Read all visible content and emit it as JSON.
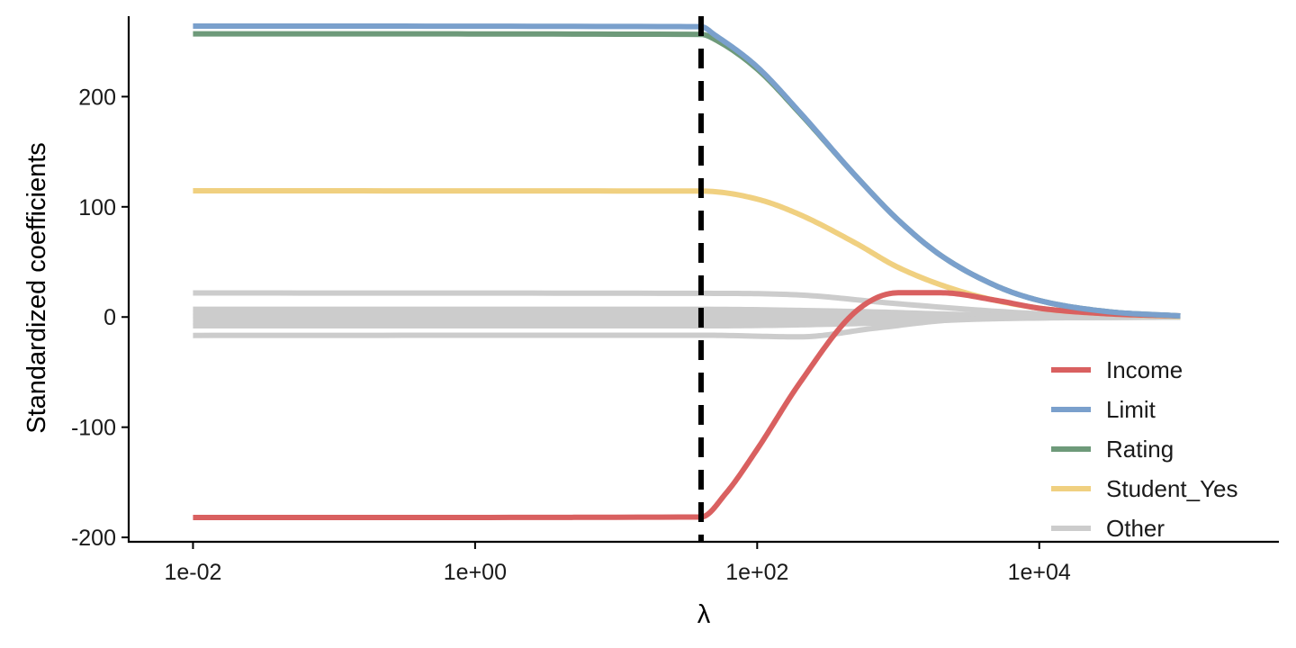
{
  "chart_data": {
    "type": "line",
    "title": "",
    "xlabel": "λ",
    "ylabel": "Standardized coefficients",
    "x_scale": "log10",
    "xlim": [
      0.0035,
      500000
    ],
    "ylim": [
      -204,
      273
    ],
    "x_ticks": [
      0.01,
      1,
      100,
      10000
    ],
    "x_tick_labels": [
      "1e-02",
      "1e+00",
      "1e+02",
      "1e+04"
    ],
    "y_ticks": [
      -200,
      -100,
      0,
      100,
      200
    ],
    "y_tick_labels": [
      "-200",
      "-100",
      "0",
      "100",
      "200"
    ],
    "grid": false,
    "legend_position": "bottom-right",
    "vline": {
      "x": 40,
      "style": "dashed",
      "color": "#000000"
    },
    "series": [
      {
        "name": "Other",
        "color": "#cccccc",
        "lines": [
          {
            "x": [
              0.01,
              40,
              200,
              1000,
              10000,
              100000
            ],
            "y": [
              21.8,
              21.5,
              20,
              12,
              3,
              0.3
            ]
          },
          {
            "x": [
              0.01,
              40,
              200,
              700,
              3000,
              100000
            ],
            "y": [
              -16.7,
              -16.5,
              -18,
              -10,
              -2,
              -0.2
            ]
          },
          {
            "x": [
              0.01,
              40,
              500,
              5000,
              100000
            ],
            "y": [
              7,
              7,
              5,
              1.5,
              0.1
            ]
          },
          {
            "x": [
              0.01,
              40,
              500,
              5000,
              100000
            ],
            "y": [
              4,
              4,
              3,
              1,
              0.1
            ]
          },
          {
            "x": [
              0.01,
              40,
              500,
              5000,
              100000
            ],
            "y": [
              1,
              1,
              0.8,
              0.3,
              0
            ]
          },
          {
            "x": [
              0.01,
              40,
              500,
              5000,
              100000
            ],
            "y": [
              -2,
              -2,
              -1.6,
              -0.5,
              0
            ]
          },
          {
            "x": [
              0.01,
              40,
              500,
              5000,
              100000
            ],
            "y": [
              -5,
              -5,
              -4,
              -1.2,
              0
            ]
          },
          {
            "x": [
              0.01,
              40,
              500,
              5000,
              100000
            ],
            "y": [
              -8,
              -8,
              -6,
              -1.5,
              0
            ]
          }
        ]
      },
      {
        "name": "Student_Yes",
        "color": "#f0d080",
        "lines": [
          {
            "x": [
              0.01,
              40,
              100,
              200,
              500,
              1000,
              3000,
              10000,
              30000,
              100000
            ],
            "y": [
              114.5,
              114.3,
              107,
              93,
              67,
              45,
              22,
              8,
              3,
              0.5
            ]
          }
        ]
      },
      {
        "name": "Income",
        "color": "#d96060",
        "lines": [
          {
            "x": [
              0.01,
              40,
              60,
              100,
              200,
              500,
              1000,
              2000,
              5000,
              10000,
              30000,
              100000
            ],
            "y": [
              -182,
              -181.5,
              -160,
              -120,
              -60,
              5,
              22,
              22,
              15,
              8,
              3,
              1
            ]
          }
        ]
      },
      {
        "name": "Rating",
        "color": "#6e9a7a",
        "lines": [
          {
            "x": [
              0.01,
              40,
              50,
              100,
              200,
              500,
              1000,
              2000,
              5000,
              10000,
              30000,
              100000
            ],
            "y": [
              257,
              256.5,
              252,
              225,
              185,
              128,
              88,
              56,
              28,
              15,
              5,
              1
            ]
          }
        ]
      },
      {
        "name": "Limit",
        "color": "#7aa0cc",
        "lines": [
          {
            "x": [
              0.01,
              40,
              50,
              100,
              200,
              500,
              1000,
              2000,
              5000,
              10000,
              30000,
              100000
            ],
            "y": [
              264,
              263.5,
              256,
              227,
              186,
              128,
              88,
              56,
              28,
              15,
              5,
              1
            ]
          }
        ]
      }
    ],
    "legend": [
      {
        "label": "Income",
        "color": "#d96060"
      },
      {
        "label": "Limit",
        "color": "#7aa0cc"
      },
      {
        "label": "Rating",
        "color": "#6e9a7a"
      },
      {
        "label": "Student_Yes",
        "color": "#f0d080"
      },
      {
        "label": "Other",
        "color": "#cccccc"
      }
    ]
  }
}
